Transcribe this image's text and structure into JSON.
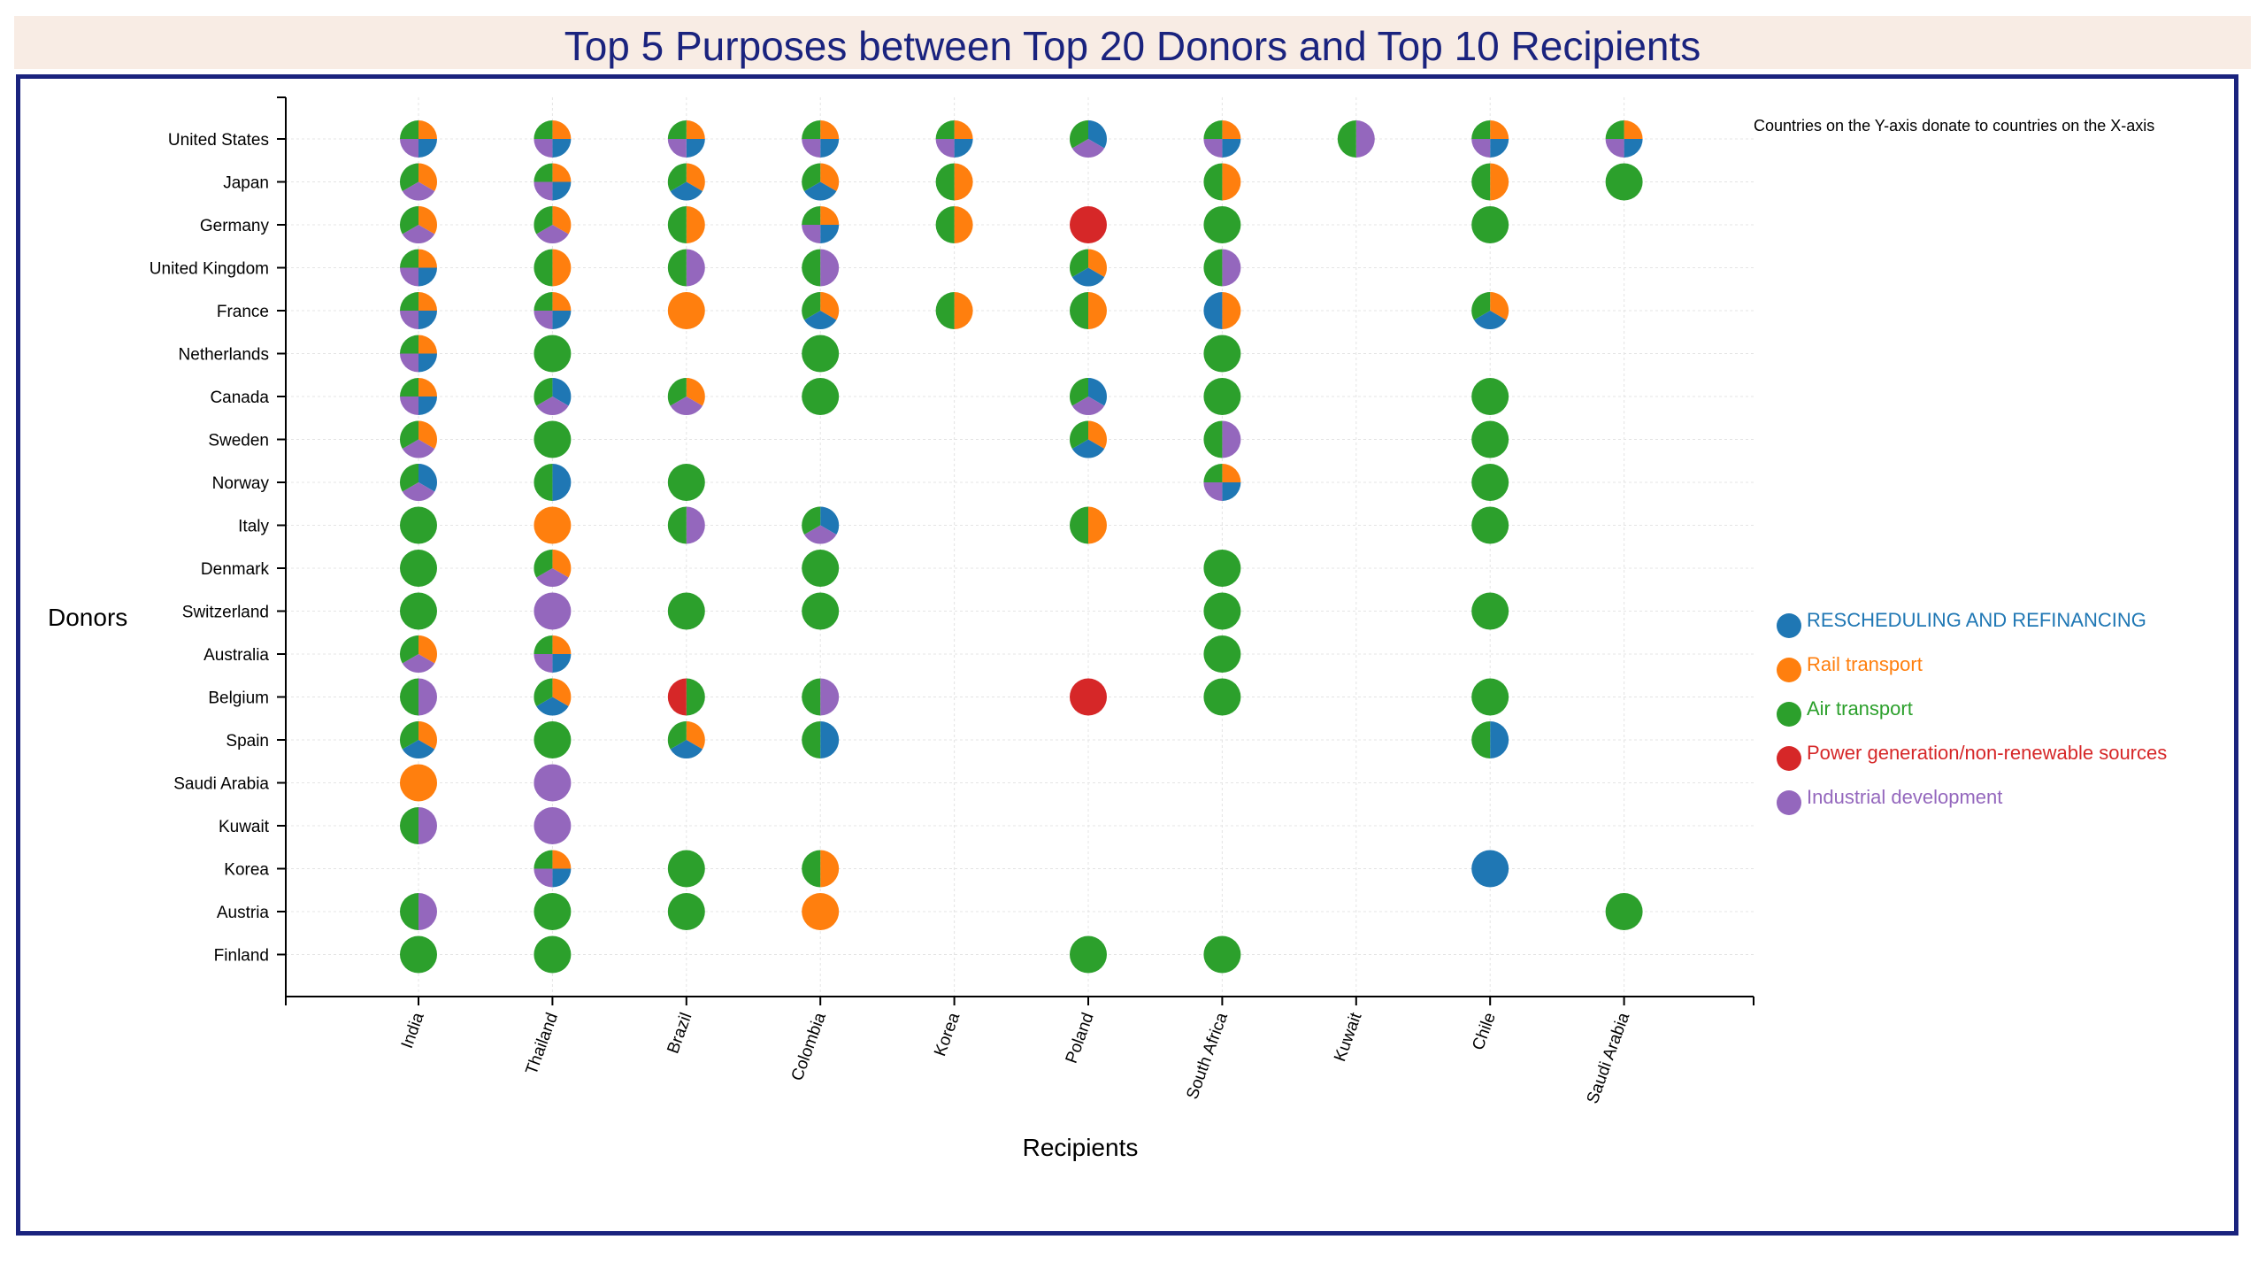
{
  "chart_data": {
    "type": "scatter",
    "title": "Top 5 Purposes between Top 20 Donors and Top 10 Recipients",
    "xlabel": "Recipients",
    "ylabel": "Donors",
    "annotation": "Countries on the Y-axis donate to countries on the X-axis",
    "grid": true,
    "legend_position": "right",
    "recipients": [
      "India",
      "Thailand",
      "Brazil",
      "Colombia",
      "Korea",
      "Poland",
      "South Africa",
      "Kuwait",
      "Chile",
      "Saudi Arabia"
    ],
    "donors": [
      "United States",
      "Japan",
      "Germany",
      "United Kingdom",
      "France",
      "Netherlands",
      "Canada",
      "Sweden",
      "Norway",
      "Italy",
      "Denmark",
      "Switzerland",
      "Australia",
      "Belgium",
      "Spain",
      "Saudi Arabia",
      "Kuwait",
      "Korea",
      "Austria",
      "Finland"
    ],
    "purposes": [
      {
        "key": "R",
        "name": "RESCHEDULING AND REFINANCING",
        "color": "#1f77b4"
      },
      {
        "key": "T",
        "name": "Rail transport",
        "color": "#ff7f0e"
      },
      {
        "key": "A",
        "name": "Air transport",
        "color": "#2ca02c"
      },
      {
        "key": "P",
        "name": "Power generation/non-renewable sources",
        "color": "#d62728"
      },
      {
        "key": "I",
        "name": "Industrial development",
        "color": "#9467bd"
      }
    ],
    "points": [
      {
        "donor": "United States",
        "recipient": "India",
        "purposes": [
          "R",
          "T",
          "A",
          "I"
        ]
      },
      {
        "donor": "United States",
        "recipient": "Thailand",
        "purposes": [
          "R",
          "T",
          "A",
          "I"
        ]
      },
      {
        "donor": "United States",
        "recipient": "Brazil",
        "purposes": [
          "R",
          "T",
          "A",
          "I"
        ]
      },
      {
        "donor": "United States",
        "recipient": "Colombia",
        "purposes": [
          "R",
          "T",
          "A",
          "I"
        ]
      },
      {
        "donor": "United States",
        "recipient": "Korea",
        "purposes": [
          "R",
          "T",
          "A",
          "I"
        ]
      },
      {
        "donor": "United States",
        "recipient": "Poland",
        "purposes": [
          "R",
          "A",
          "I"
        ]
      },
      {
        "donor": "United States",
        "recipient": "South Africa",
        "purposes": [
          "R",
          "T",
          "A",
          "I"
        ]
      },
      {
        "donor": "United States",
        "recipient": "Kuwait",
        "purposes": [
          "A",
          "I"
        ]
      },
      {
        "donor": "United States",
        "recipient": "Chile",
        "purposes": [
          "R",
          "T",
          "A",
          "I"
        ]
      },
      {
        "donor": "United States",
        "recipient": "Saudi Arabia",
        "purposes": [
          "R",
          "T",
          "A",
          "I"
        ]
      },
      {
        "donor": "Japan",
        "recipient": "India",
        "purposes": [
          "T",
          "A",
          "I"
        ]
      },
      {
        "donor": "Japan",
        "recipient": "Thailand",
        "purposes": [
          "R",
          "T",
          "A",
          "I"
        ]
      },
      {
        "donor": "Japan",
        "recipient": "Brazil",
        "purposes": [
          "R",
          "T",
          "A"
        ]
      },
      {
        "donor": "Japan",
        "recipient": "Colombia",
        "purposes": [
          "R",
          "T",
          "A"
        ]
      },
      {
        "donor": "Japan",
        "recipient": "Korea",
        "purposes": [
          "T",
          "A"
        ]
      },
      {
        "donor": "Japan",
        "recipient": "South Africa",
        "purposes": [
          "T",
          "A"
        ]
      },
      {
        "donor": "Japan",
        "recipient": "Chile",
        "purposes": [
          "T",
          "A"
        ]
      },
      {
        "donor": "Japan",
        "recipient": "Saudi Arabia",
        "purposes": [
          "A"
        ]
      },
      {
        "donor": "Germany",
        "recipient": "India",
        "purposes": [
          "T",
          "A",
          "I"
        ]
      },
      {
        "donor": "Germany",
        "recipient": "Thailand",
        "purposes": [
          "T",
          "A",
          "I"
        ]
      },
      {
        "donor": "Germany",
        "recipient": "Brazil",
        "purposes": [
          "T",
          "A"
        ]
      },
      {
        "donor": "Germany",
        "recipient": "Colombia",
        "purposes": [
          "R",
          "T",
          "A",
          "I"
        ]
      },
      {
        "donor": "Germany",
        "recipient": "Korea",
        "purposes": [
          "T",
          "A"
        ]
      },
      {
        "donor": "Germany",
        "recipient": "Poland",
        "purposes": [
          "P"
        ]
      },
      {
        "donor": "Germany",
        "recipient": "South Africa",
        "purposes": [
          "A"
        ]
      },
      {
        "donor": "Germany",
        "recipient": "Chile",
        "purposes": [
          "A"
        ]
      },
      {
        "donor": "United Kingdom",
        "recipient": "India",
        "purposes": [
          "R",
          "T",
          "A",
          "I"
        ]
      },
      {
        "donor": "United Kingdom",
        "recipient": "Thailand",
        "purposes": [
          "T",
          "A"
        ]
      },
      {
        "donor": "United Kingdom",
        "recipient": "Brazil",
        "purposes": [
          "A",
          "I"
        ]
      },
      {
        "donor": "United Kingdom",
        "recipient": "Colombia",
        "purposes": [
          "A",
          "I"
        ]
      },
      {
        "donor": "United Kingdom",
        "recipient": "Poland",
        "purposes": [
          "R",
          "T",
          "A"
        ]
      },
      {
        "donor": "United Kingdom",
        "recipient": "South Africa",
        "purposes": [
          "A",
          "I"
        ]
      },
      {
        "donor": "France",
        "recipient": "India",
        "purposes": [
          "R",
          "T",
          "A",
          "I"
        ]
      },
      {
        "donor": "France",
        "recipient": "Thailand",
        "purposes": [
          "R",
          "T",
          "A",
          "I"
        ]
      },
      {
        "donor": "France",
        "recipient": "Brazil",
        "purposes": [
          "T"
        ]
      },
      {
        "donor": "France",
        "recipient": "Colombia",
        "purposes": [
          "R",
          "T",
          "A"
        ]
      },
      {
        "donor": "France",
        "recipient": "Korea",
        "purposes": [
          "T",
          "A"
        ]
      },
      {
        "donor": "France",
        "recipient": "Poland",
        "purposes": [
          "T",
          "A"
        ]
      },
      {
        "donor": "France",
        "recipient": "South Africa",
        "purposes": [
          "R",
          "T"
        ]
      },
      {
        "donor": "France",
        "recipient": "Chile",
        "purposes": [
          "R",
          "T",
          "A"
        ]
      },
      {
        "donor": "Netherlands",
        "recipient": "India",
        "purposes": [
          "R",
          "T",
          "A",
          "I"
        ]
      },
      {
        "donor": "Netherlands",
        "recipient": "Thailand",
        "purposes": [
          "A"
        ]
      },
      {
        "donor": "Netherlands",
        "recipient": "Colombia",
        "purposes": [
          "A"
        ]
      },
      {
        "donor": "Netherlands",
        "recipient": "South Africa",
        "purposes": [
          "A"
        ]
      },
      {
        "donor": "Canada",
        "recipient": "India",
        "purposes": [
          "R",
          "T",
          "A",
          "I"
        ]
      },
      {
        "donor": "Canada",
        "recipient": "Thailand",
        "purposes": [
          "R",
          "A",
          "I"
        ]
      },
      {
        "donor": "Canada",
        "recipient": "Brazil",
        "purposes": [
          "T",
          "A",
          "I"
        ]
      },
      {
        "donor": "Canada",
        "recipient": "Colombia",
        "purposes": [
          "A"
        ]
      },
      {
        "donor": "Canada",
        "recipient": "Poland",
        "purposes": [
          "R",
          "A",
          "I"
        ]
      },
      {
        "donor": "Canada",
        "recipient": "South Africa",
        "purposes": [
          "A"
        ]
      },
      {
        "donor": "Canada",
        "recipient": "Chile",
        "purposes": [
          "A"
        ]
      },
      {
        "donor": "Sweden",
        "recipient": "India",
        "purposes": [
          "T",
          "A",
          "I"
        ]
      },
      {
        "donor": "Sweden",
        "recipient": "Thailand",
        "purposes": [
          "A"
        ]
      },
      {
        "donor": "Sweden",
        "recipient": "Poland",
        "purposes": [
          "R",
          "T",
          "A"
        ]
      },
      {
        "donor": "Sweden",
        "recipient": "South Africa",
        "purposes": [
          "A",
          "I"
        ]
      },
      {
        "donor": "Sweden",
        "recipient": "Chile",
        "purposes": [
          "A"
        ]
      },
      {
        "donor": "Norway",
        "recipient": "India",
        "purposes": [
          "R",
          "A",
          "I"
        ]
      },
      {
        "donor": "Norway",
        "recipient": "Thailand",
        "purposes": [
          "R",
          "A"
        ]
      },
      {
        "donor": "Norway",
        "recipient": "Brazil",
        "purposes": [
          "A"
        ]
      },
      {
        "donor": "Norway",
        "recipient": "South Africa",
        "purposes": [
          "R",
          "T",
          "A",
          "I"
        ]
      },
      {
        "donor": "Norway",
        "recipient": "Chile",
        "purposes": [
          "A"
        ]
      },
      {
        "donor": "Italy",
        "recipient": "India",
        "purposes": [
          "A"
        ]
      },
      {
        "donor": "Italy",
        "recipient": "Thailand",
        "purposes": [
          "T"
        ]
      },
      {
        "donor": "Italy",
        "recipient": "Brazil",
        "purposes": [
          "A",
          "I"
        ]
      },
      {
        "donor": "Italy",
        "recipient": "Colombia",
        "purposes": [
          "R",
          "A",
          "I"
        ]
      },
      {
        "donor": "Italy",
        "recipient": "Poland",
        "purposes": [
          "T",
          "A"
        ]
      },
      {
        "donor": "Italy",
        "recipient": "Chile",
        "purposes": [
          "A"
        ]
      },
      {
        "donor": "Denmark",
        "recipient": "India",
        "purposes": [
          "A"
        ]
      },
      {
        "donor": "Denmark",
        "recipient": "Thailand",
        "purposes": [
          "T",
          "A",
          "I"
        ]
      },
      {
        "donor": "Denmark",
        "recipient": "Colombia",
        "purposes": [
          "A"
        ]
      },
      {
        "donor": "Denmark",
        "recipient": "South Africa",
        "purposes": [
          "A"
        ]
      },
      {
        "donor": "Switzerland",
        "recipient": "India",
        "purposes": [
          "A"
        ]
      },
      {
        "donor": "Switzerland",
        "recipient": "Thailand",
        "purposes": [
          "I"
        ]
      },
      {
        "donor": "Switzerland",
        "recipient": "Brazil",
        "purposes": [
          "A"
        ]
      },
      {
        "donor": "Switzerland",
        "recipient": "Colombia",
        "purposes": [
          "A"
        ]
      },
      {
        "donor": "Switzerland",
        "recipient": "South Africa",
        "purposes": [
          "A"
        ]
      },
      {
        "donor": "Switzerland",
        "recipient": "Chile",
        "purposes": [
          "A"
        ]
      },
      {
        "donor": "Australia",
        "recipient": "India",
        "purposes": [
          "T",
          "A",
          "I"
        ]
      },
      {
        "donor": "Australia",
        "recipient": "Thailand",
        "purposes": [
          "R",
          "T",
          "A",
          "I"
        ]
      },
      {
        "donor": "Australia",
        "recipient": "South Africa",
        "purposes": [
          "A"
        ]
      },
      {
        "donor": "Belgium",
        "recipient": "India",
        "purposes": [
          "A",
          "I"
        ]
      },
      {
        "donor": "Belgium",
        "recipient": "Thailand",
        "purposes": [
          "R",
          "T",
          "A"
        ]
      },
      {
        "donor": "Belgium",
        "recipient": "Brazil",
        "purposes": [
          "A",
          "P"
        ]
      },
      {
        "donor": "Belgium",
        "recipient": "Colombia",
        "purposes": [
          "A",
          "I"
        ]
      },
      {
        "donor": "Belgium",
        "recipient": "Poland",
        "purposes": [
          "P"
        ]
      },
      {
        "donor": "Belgium",
        "recipient": "South Africa",
        "purposes": [
          "A"
        ]
      },
      {
        "donor": "Belgium",
        "recipient": "Chile",
        "purposes": [
          "A"
        ]
      },
      {
        "donor": "Spain",
        "recipient": "India",
        "purposes": [
          "R",
          "T",
          "A"
        ]
      },
      {
        "donor": "Spain",
        "recipient": "Thailand",
        "purposes": [
          "A"
        ]
      },
      {
        "donor": "Spain",
        "recipient": "Brazil",
        "purposes": [
          "R",
          "T",
          "A"
        ]
      },
      {
        "donor": "Spain",
        "recipient": "Colombia",
        "purposes": [
          "R",
          "A"
        ]
      },
      {
        "donor": "Spain",
        "recipient": "Chile",
        "purposes": [
          "R",
          "A"
        ]
      },
      {
        "donor": "Saudi Arabia",
        "recipient": "India",
        "purposes": [
          "T"
        ]
      },
      {
        "donor": "Saudi Arabia",
        "recipient": "Thailand",
        "purposes": [
          "I"
        ]
      },
      {
        "donor": "Kuwait",
        "recipient": "India",
        "purposes": [
          "A",
          "I"
        ]
      },
      {
        "donor": "Kuwait",
        "recipient": "Thailand",
        "purposes": [
          "I"
        ]
      },
      {
        "donor": "Korea",
        "recipient": "Thailand",
        "purposes": [
          "R",
          "T",
          "A",
          "I"
        ]
      },
      {
        "donor": "Korea",
        "recipient": "Brazil",
        "purposes": [
          "A"
        ]
      },
      {
        "donor": "Korea",
        "recipient": "Colombia",
        "purposes": [
          "T",
          "A"
        ]
      },
      {
        "donor": "Korea",
        "recipient": "Chile",
        "purposes": [
          "R"
        ]
      },
      {
        "donor": "Austria",
        "recipient": "India",
        "purposes": [
          "A",
          "I"
        ]
      },
      {
        "donor": "Austria",
        "recipient": "Thailand",
        "purposes": [
          "A"
        ]
      },
      {
        "donor": "Austria",
        "recipient": "Brazil",
        "purposes": [
          "A"
        ]
      },
      {
        "donor": "Austria",
        "recipient": "Colombia",
        "purposes": [
          "T"
        ]
      },
      {
        "donor": "Austria",
        "recipient": "Saudi Arabia",
        "purposes": [
          "A"
        ]
      },
      {
        "donor": "Finland",
        "recipient": "India",
        "purposes": [
          "A"
        ]
      },
      {
        "donor": "Finland",
        "recipient": "Thailand",
        "purposes": [
          "A"
        ]
      },
      {
        "donor": "Finland",
        "recipient": "Poland",
        "purposes": [
          "A"
        ]
      },
      {
        "donor": "Finland",
        "recipient": "South Africa",
        "purposes": [
          "A"
        ]
      }
    ]
  }
}
